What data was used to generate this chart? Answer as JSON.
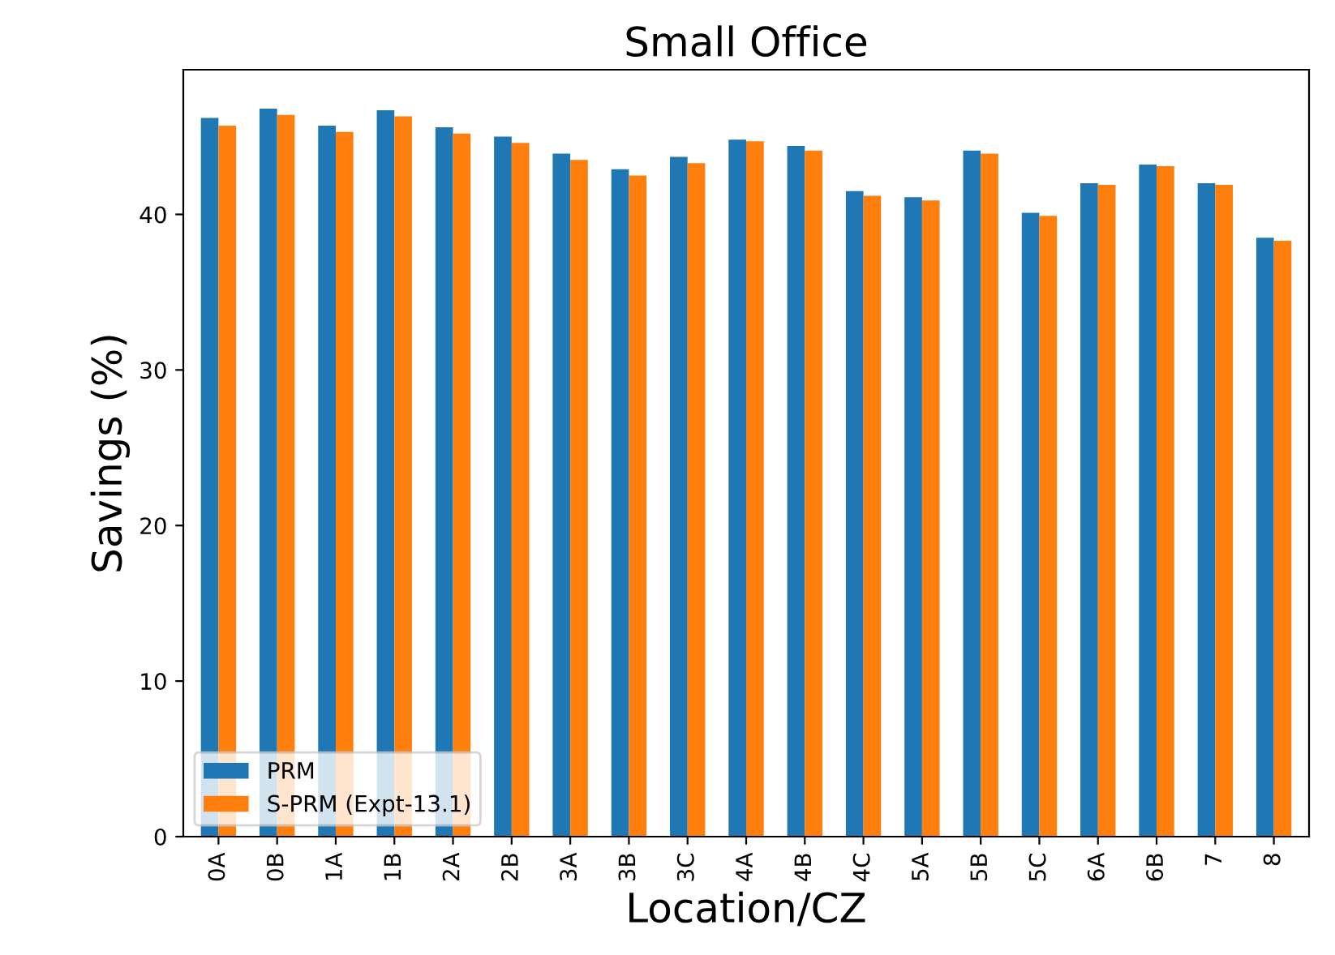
{
  "chart_data": {
    "type": "bar",
    "title": "Small Office",
    "xlabel": "Location/CZ",
    "ylabel": "Savings (%)",
    "categories": [
      "0A",
      "0B",
      "1A",
      "1B",
      "2A",
      "2B",
      "3A",
      "3B",
      "3C",
      "4A",
      "4B",
      "4C",
      "5A",
      "5B",
      "5C",
      "6A",
      "6B",
      "7",
      "8"
    ],
    "series": [
      {
        "name": "PRM",
        "color": "#1f77b4",
        "values": [
          46.2,
          46.8,
          45.7,
          46.7,
          45.6,
          45.0,
          43.9,
          42.9,
          43.7,
          44.8,
          44.4,
          41.5,
          41.1,
          44.1,
          40.1,
          42.0,
          43.2,
          42.0,
          38.5
        ]
      },
      {
        "name": "S-PRM (Expt-13.1)",
        "color": "#ff7f0e",
        "values": [
          45.7,
          46.4,
          45.3,
          46.3,
          45.2,
          44.6,
          43.5,
          42.5,
          43.3,
          44.7,
          44.1,
          41.2,
          40.9,
          43.9,
          39.9,
          41.9,
          43.1,
          41.9,
          38.3
        ]
      }
    ],
    "ylim": [
      0,
      49.3
    ],
    "yticks": [
      0,
      10,
      20,
      30,
      40
    ],
    "grid": false,
    "legend": "bottom left"
  }
}
